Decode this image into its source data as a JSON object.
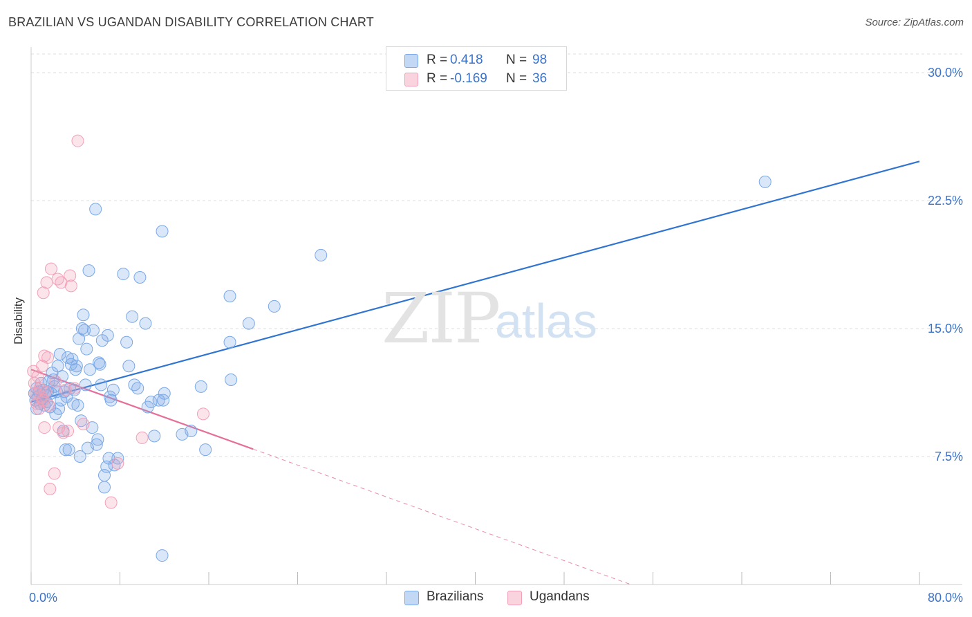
{
  "header": {
    "title": "BRAZILIAN VS UGANDAN DISABILITY CORRELATION CHART",
    "source": "Source: ZipAtlas.com"
  },
  "watermark": {
    "zip": "ZIP",
    "atlas": "atlas"
  },
  "legend_top": {
    "rows": [
      {
        "r_label": "R =",
        "r_value": "0.418",
        "n_label": "N =",
        "n_value": "98",
        "color": "#7aa8e6"
      },
      {
        "r_label": "R =",
        "r_value": "-0.169",
        "n_label": "N =",
        "n_value": "36",
        "color": "#f2a0b8"
      }
    ]
  },
  "legend_bottom": [
    {
      "label": "Brazilians",
      "color": "#7aa8e6"
    },
    {
      "label": "Ugandans",
      "color": "#f2a0b8"
    }
  ],
  "chart_data": {
    "type": "scatter",
    "title": "BRAZILIAN VS UGANDAN DISABILITY CORRELATION CHART",
    "xlabel": "",
    "ylabel": "Disability",
    "xlim": [
      0,
      80
    ],
    "ylim": [
      0,
      31.5
    ],
    "x_tick_labels": [
      "0.0%",
      "80.0%"
    ],
    "y_ticks": [
      7.5,
      15.0,
      22.5,
      30.0
    ],
    "y_tick_labels": [
      "7.5%",
      "15.0%",
      "22.5%",
      "30.0%"
    ],
    "grid": true,
    "series": [
      {
        "name": "Brazilians",
        "color": "#7aa8e6",
        "trend_color": "#2f74d0",
        "trend": {
          "x0": 0,
          "y0": 10.7,
          "x1": 80,
          "y1": 24.8,
          "dashed_from": null
        },
        "points": [
          [
            0.3,
            11.2
          ],
          [
            0.4,
            10.8
          ],
          [
            0.5,
            11.5
          ],
          [
            0.5,
            10.3
          ],
          [
            0.6,
            11.0
          ],
          [
            0.7,
            11.3
          ],
          [
            0.8,
            10.6
          ],
          [
            0.9,
            11.8
          ],
          [
            1.0,
            10.9
          ],
          [
            1.1,
            11.4
          ],
          [
            1.2,
            10.5
          ],
          [
            1.3,
            11.1
          ],
          [
            1.4,
            10.7
          ],
          [
            1.5,
            11.3
          ],
          [
            1.6,
            11.9
          ],
          [
            1.7,
            10.4
          ],
          [
            1.8,
            11.2
          ],
          [
            1.9,
            12.4
          ],
          [
            2.0,
            12.0
          ],
          [
            2.1,
            11.6
          ],
          [
            2.2,
            10.0
          ],
          [
            2.3,
            11.3
          ],
          [
            2.4,
            12.8
          ],
          [
            2.5,
            10.3
          ],
          [
            2.6,
            13.5
          ],
          [
            2.7,
            10.8
          ],
          [
            2.8,
            12.2
          ],
          [
            2.9,
            9.0
          ],
          [
            3.0,
            11.3
          ],
          [
            3.1,
            7.9
          ],
          [
            3.2,
            11.0
          ],
          [
            3.3,
            13.3
          ],
          [
            3.4,
            7.9
          ],
          [
            3.5,
            11.5
          ],
          [
            3.6,
            12.9
          ],
          [
            3.7,
            13.2
          ],
          [
            3.8,
            10.6
          ],
          [
            3.9,
            11.4
          ],
          [
            4.0,
            12.6
          ],
          [
            4.1,
            12.8
          ],
          [
            4.2,
            10.5
          ],
          [
            4.3,
            14.4
          ],
          [
            4.4,
            7.5
          ],
          [
            4.5,
            9.6
          ],
          [
            4.6,
            15.0
          ],
          [
            4.7,
            15.8
          ],
          [
            4.8,
            14.9
          ],
          [
            4.9,
            11.7
          ],
          [
            5.0,
            13.8
          ],
          [
            5.1,
            8.0
          ],
          [
            5.2,
            18.4
          ],
          [
            5.3,
            12.6
          ],
          [
            5.5,
            9.2
          ],
          [
            5.6,
            14.9
          ],
          [
            5.8,
            22.0
          ],
          [
            5.9,
            8.2
          ],
          [
            6.0,
            8.5
          ],
          [
            6.1,
            13.0
          ],
          [
            6.2,
            12.9
          ],
          [
            6.3,
            11.7
          ],
          [
            6.4,
            14.3
          ],
          [
            6.6,
            6.4
          ],
          [
            6.6,
            5.7
          ],
          [
            6.8,
            6.9
          ],
          [
            6.9,
            14.6
          ],
          [
            7.0,
            7.4
          ],
          [
            7.1,
            11.0
          ],
          [
            7.2,
            10.8
          ],
          [
            7.4,
            11.4
          ],
          [
            7.5,
            7.0
          ],
          [
            7.8,
            7.4
          ],
          [
            8.3,
            18.2
          ],
          [
            8.6,
            14.2
          ],
          [
            8.8,
            12.8
          ],
          [
            9.1,
            15.7
          ],
          [
            9.3,
            11.7
          ],
          [
            9.6,
            11.5
          ],
          [
            9.8,
            18.0
          ],
          [
            10.3,
            15.3
          ],
          [
            10.5,
            10.4
          ],
          [
            10.8,
            10.7
          ],
          [
            11.1,
            8.7
          ],
          [
            11.5,
            10.8
          ],
          [
            11.8,
            1.7
          ],
          [
            11.8,
            20.7
          ],
          [
            11.9,
            10.8
          ],
          [
            12.0,
            11.2
          ],
          [
            13.6,
            8.8
          ],
          [
            14.4,
            9.0
          ],
          [
            15.3,
            11.6
          ],
          [
            15.7,
            7.9
          ],
          [
            17.9,
            16.9
          ],
          [
            17.9,
            14.2
          ],
          [
            18.0,
            12.0
          ],
          [
            19.6,
            15.3
          ],
          [
            21.9,
            16.3
          ],
          [
            26.1,
            19.3
          ],
          [
            66.1,
            23.6
          ]
        ]
      },
      {
        "name": "Ugandans",
        "color": "#f2a0b8",
        "trend_color": "#e56f98",
        "trend": {
          "x0": 0,
          "y0": 12.6,
          "x1": 54,
          "y1": 0,
          "dashed_from": 20
        },
        "points": [
          [
            0.2,
            12.5
          ],
          [
            0.3,
            11.8
          ],
          [
            0.4,
            11.2
          ],
          [
            0.5,
            10.6
          ],
          [
            0.6,
            12.2
          ],
          [
            0.7,
            10.3
          ],
          [
            0.8,
            11.5
          ],
          [
            0.9,
            11.0
          ],
          [
            1.0,
            12.8
          ],
          [
            1.1,
            10.8
          ],
          [
            1.1,
            17.1
          ],
          [
            1.2,
            9.2
          ],
          [
            1.2,
            13.4
          ],
          [
            1.3,
            11.3
          ],
          [
            1.4,
            17.7
          ],
          [
            1.5,
            13.3
          ],
          [
            1.6,
            10.5
          ],
          [
            1.7,
            5.6
          ],
          [
            1.8,
            18.5
          ],
          [
            2.1,
            6.5
          ],
          [
            2.2,
            11.9
          ],
          [
            2.4,
            17.9
          ],
          [
            2.5,
            9.2
          ],
          [
            2.7,
            17.7
          ],
          [
            2.9,
            8.9
          ],
          [
            3.1,
            11.4
          ],
          [
            3.3,
            9.0
          ],
          [
            3.5,
            18.1
          ],
          [
            3.6,
            17.5
          ],
          [
            3.9,
            11.5
          ],
          [
            4.2,
            26.0
          ],
          [
            4.7,
            9.4
          ],
          [
            7.2,
            4.8
          ],
          [
            7.8,
            7.1
          ],
          [
            10.0,
            8.6
          ],
          [
            15.5,
            10.0
          ]
        ]
      }
    ]
  }
}
